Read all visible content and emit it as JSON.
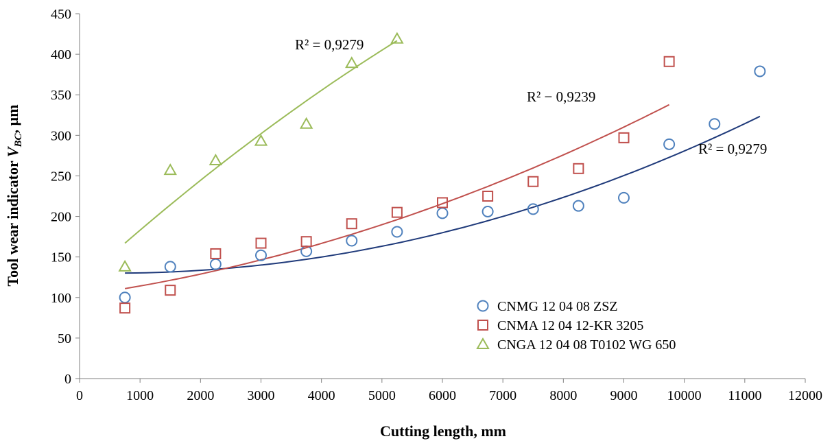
{
  "chart_data": {
    "type": "scatter",
    "xlabel": "Cutting length, mm",
    "ylabel_parts": [
      "Tool wear indicator ",
      "V",
      "BC",
      ", µm"
    ],
    "xlim": [
      0,
      12000
    ],
    "ylim": [
      0,
      450
    ],
    "xticks": [
      0,
      1000,
      2000,
      3000,
      4000,
      5000,
      6000,
      7000,
      8000,
      9000,
      10000,
      11000,
      12000
    ],
    "yticks": [
      0,
      50,
      100,
      150,
      200,
      250,
      300,
      350,
      400,
      450
    ],
    "grid": false,
    "legend_position": "bottom-right",
    "series": [
      {
        "name": "CNMG 12 04 08 ZSZ",
        "marker": "circle",
        "color": "#4f81bd",
        "trend_color": "#1f3a7a",
        "x": [
          750,
          1500,
          2250,
          3000,
          3750,
          4500,
          5250,
          6000,
          6750,
          7500,
          8250,
          9000,
          9750,
          10500,
          11250
        ],
        "y": [
          100,
          138,
          141,
          152,
          157,
          170,
          181,
          204,
          206,
          209,
          213,
          223,
          289,
          314,
          379
        ],
        "trend": {
          "poly": [
            1.7e-06,
            -0.002,
            130.7
          ],
          "x_range": [
            750,
            11250
          ]
        }
      },
      {
        "name": "CNMA 12 04 12-KR 3205",
        "marker": "square",
        "color": "#c0504d",
        "trend_color": "#c0504d",
        "x": [
          750,
          1500,
          2250,
          3000,
          3750,
          4500,
          5250,
          6000,
          6750,
          7500,
          8250,
          9000,
          9750
        ],
        "y": [
          87,
          109,
          154,
          167,
          169,
          191,
          205,
          217,
          225,
          243,
          259,
          297,
          391
        ],
        "trend": {
          "poly": [
            1.4e-06,
            0.0105,
            102.3
          ],
          "x_range": [
            750,
            9750
          ]
        }
      },
      {
        "name": "CNGA 12 04 08 T0102 WG 650",
        "marker": "triangle",
        "color": "#9bbb59",
        "trend_color": "#9bbb59",
        "x": [
          750,
          1500,
          2250,
          3000,
          3750,
          4500,
          5250
        ],
        "y": [
          138,
          257,
          269,
          293,
          314,
          389,
          419
        ],
        "trend": {
          "poly": [
            -2e-06,
            0.0675,
            117.5
          ],
          "x_range": [
            750,
            5250
          ]
        }
      }
    ],
    "annotations": [
      {
        "text": "R² = 0,9279",
        "series": 2
      },
      {
        "text": "R² − 0,9239",
        "series": 1
      },
      {
        "text": "R² = 0,9279",
        "series": 0
      }
    ]
  }
}
